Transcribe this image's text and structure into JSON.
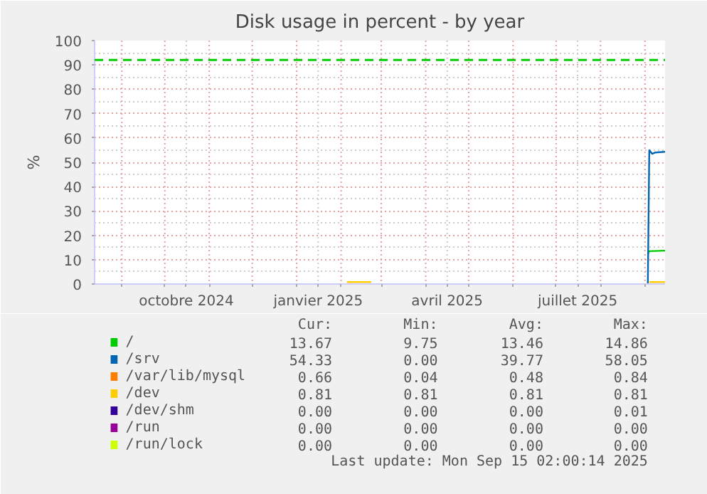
{
  "chart_data": {
    "type": "line",
    "title": "Disk usage in percent - by year",
    "ylabel": "%",
    "xlim": [
      "2024-08-13",
      "2025-09-15"
    ],
    "ylim": [
      0,
      100
    ],
    "yticks": [
      0,
      10,
      20,
      30,
      40,
      50,
      60,
      70,
      80,
      90,
      100
    ],
    "xticks": [
      {
        "value": "2024-09-01",
        "label": null
      },
      {
        "value": "2024-10-01",
        "label": null
      },
      {
        "value": "2024-10-16",
        "label": "octobre 2024"
      },
      {
        "value": "2024-11-01",
        "label": null
      },
      {
        "value": "2024-12-01",
        "label": null
      },
      {
        "value": "2025-01-01",
        "label": null
      },
      {
        "value": "2025-01-16",
        "label": "janvier 2025"
      },
      {
        "value": "2025-02-01",
        "label": null
      },
      {
        "value": "2025-03-01",
        "label": null
      },
      {
        "value": "2025-04-01",
        "label": null
      },
      {
        "value": "2025-04-16",
        "label": "avril 2025"
      },
      {
        "value": "2025-05-01",
        "label": null
      },
      {
        "value": "2025-06-01",
        "label": null
      },
      {
        "value": "2025-07-01",
        "label": null
      },
      {
        "value": "2025-07-16",
        "label": "juillet 2025"
      },
      {
        "value": "2025-08-01",
        "label": null
      },
      {
        "value": "2025-09-01",
        "label": null
      }
    ],
    "grid": true,
    "legend": "bottom",
    "ref_lines": [
      {
        "axis": "y",
        "value": 92,
        "color": "#00cc00",
        "line_style": "dashed"
      }
    ],
    "series": [
      {
        "name": "/",
        "color": "#00cc00",
        "x": [
          "2025-09-03",
          "2025-09-04",
          "2025-09-15"
        ],
        "values": [
          12.3,
          13.5,
          13.7
        ]
      },
      {
        "name": "/srv",
        "color": "#0066b3",
        "x": [
          "2025-09-03",
          "2025-09-04",
          "2025-09-06",
          "2025-09-08",
          "2025-09-15"
        ],
        "values": [
          0,
          55,
          53.5,
          54,
          54.3
        ]
      },
      {
        "name": "/var/lib/mysql",
        "color": "#ff8000"
      },
      {
        "name": "/dev",
        "color": "#ffcc00",
        "x": [
          "2025-02-05",
          "2025-02-22",
          "2025-02-23",
          "2025-09-04",
          "2025-09-15"
        ],
        "values": [
          0.81,
          0.81,
          null,
          0.81,
          0.81
        ]
      },
      {
        "name": "/dev/shm",
        "color": "#330099"
      },
      {
        "name": "/run",
        "color": "#990099"
      },
      {
        "name": "/run/lock",
        "color": "#ccff00"
      }
    ],
    "annotations": [
      "Cur:",
      "Min:",
      "Avg:",
      "Max:",
      "13.67",
      "9.75",
      "13.46",
      "14.86",
      "54.33",
      "0.00",
      "39.77",
      "58.05",
      "0.66",
      "0.04",
      "0.48",
      "0.84",
      "0.81",
      "0.81",
      "0.81",
      "0.81",
      "0.00",
      "0.00",
      "0.00",
      "0.01",
      "0.00",
      "0.00",
      "0.00",
      "0.00",
      "0.00",
      "0.00",
      "0.00",
      "0.00",
      "Last update: Mon Sep 15 02:00:14 2025"
    ]
  }
}
